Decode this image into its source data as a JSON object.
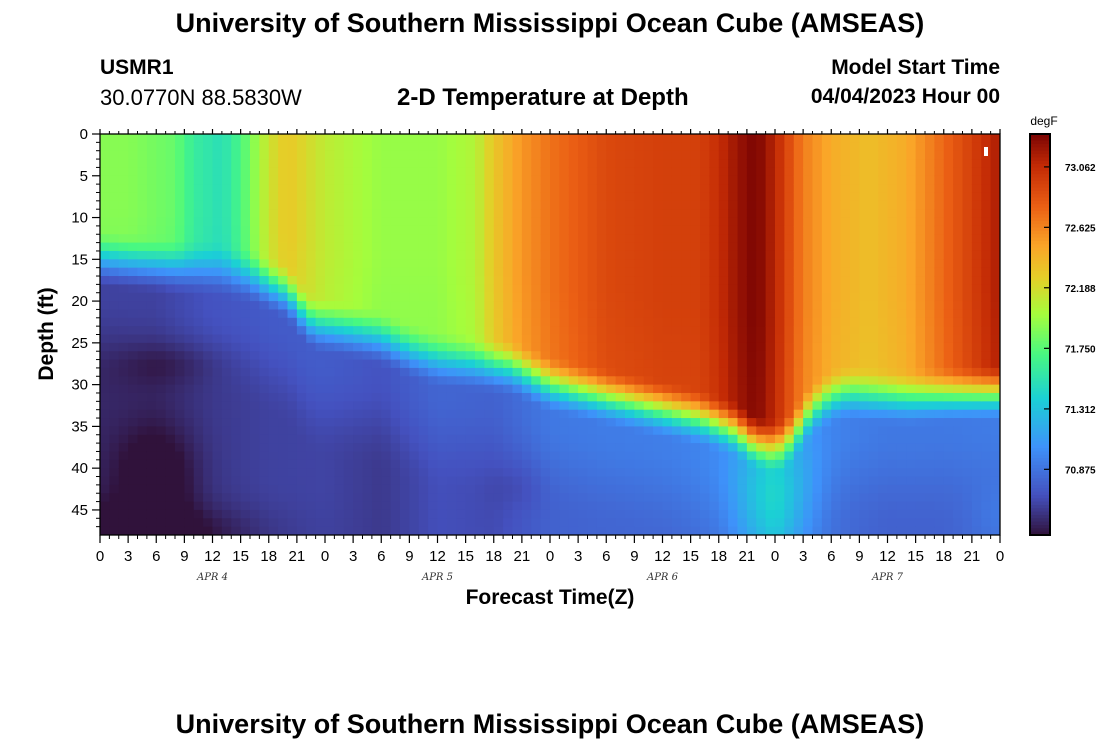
{
  "header": {
    "title": "University of Southern Mississippi Ocean Cube (AMSEAS)",
    "station": "USMR1",
    "coords": "30.0770N  88.5830W",
    "plot_title": "2-D Temperature at Depth",
    "model_start_label": "Model Start Time",
    "model_start_value": "04/04/2023 Hour 00"
  },
  "footer": {
    "title": "University of Southern Mississippi Ocean Cube (AMSEAS)"
  },
  "chart_data": {
    "type": "heatmap",
    "title": "2-D Temperature at Depth",
    "xlabel": "Forecast Time(Z)",
    "ylabel": "Depth (ft)",
    "x_hours_range": [
      0,
      96
    ],
    "x_tick_step_hours": 3,
    "x_tick_labels": [
      "0",
      "3",
      "6",
      "9",
      "12",
      "15",
      "18",
      "21",
      "0",
      "3",
      "6",
      "9",
      "12",
      "15",
      "18",
      "21",
      "0",
      "3",
      "6",
      "9",
      "12",
      "15",
      "18",
      "21",
      "0",
      "3",
      "6",
      "9",
      "12",
      "15",
      "18",
      "21",
      "0"
    ],
    "date_labels": [
      {
        "text": "APR 4",
        "hour": 12
      },
      {
        "text": "APR 5",
        "hour": 36
      },
      {
        "text": "APR 6",
        "hour": 60
      },
      {
        "text": "APR 7",
        "hour": 84
      }
    ],
    "y_range": [
      0,
      48
    ],
    "y_ticks": [
      0,
      5,
      10,
      15,
      20,
      25,
      30,
      35,
      40,
      45
    ],
    "colorbar": {
      "units": "degF",
      "min": 70.4,
      "max": 73.3,
      "tick_values": [
        73.062,
        72.625,
        72.188,
        71.75,
        71.312,
        70.875
      ],
      "tick_labels": [
        "73.062",
        "72.625",
        "72.188",
        "71.750",
        "71.312",
        "70.875"
      ]
    },
    "warm_layer_boundary_depth_ft": {
      "hours": [
        0,
        5,
        9,
        13,
        14,
        16,
        18,
        20,
        21,
        22,
        23,
        26,
        30,
        33,
        36,
        40,
        44,
        48,
        52,
        56,
        60,
        64,
        68,
        69,
        70,
        71,
        72,
        73,
        74,
        75,
        76,
        78,
        80,
        82,
        86,
        90,
        96
      ],
      "depths": [
        15,
        15.6,
        16,
        16.3,
        16.6,
        17,
        18,
        19,
        20.5,
        22,
        22.8,
        23.5,
        24.5,
        26,
        27,
        27.5,
        28,
        30,
        31,
        32,
        33,
        34,
        35.5,
        36.5,
        37,
        37.4,
        37.6,
        37.2,
        36.2,
        34.5,
        33,
        31.5,
        31,
        31.3,
        31.6,
        31.3,
        31
      ]
    },
    "surface_temperature_degF": {
      "hours": [
        0,
        3,
        8,
        10,
        13,
        15,
        18,
        20,
        24,
        30,
        36,
        40,
        42,
        45,
        48,
        54,
        60,
        64,
        66,
        68,
        70,
        72,
        75,
        78,
        82,
        86,
        90,
        93,
        96
      ],
      "values": [
        71.9,
        71.9,
        71.8,
        71.6,
        71.5,
        71.7,
        72.15,
        72.3,
        72.1,
        71.95,
        71.95,
        72.05,
        72.3,
        72.55,
        72.7,
        72.9,
        72.95,
        72.95,
        73.05,
        73.2,
        73.3,
        73.1,
        72.65,
        72.45,
        72.35,
        72.45,
        72.75,
        72.95,
        73.15
      ]
    },
    "bottom_layer_temperature_degF": {
      "hours": [
        0,
        6,
        12,
        18,
        24,
        30,
        36,
        42,
        48,
        54,
        60,
        66,
        70,
        72,
        74,
        78,
        84,
        90,
        96
      ],
      "values": [
        70.62,
        70.62,
        70.7,
        70.74,
        70.75,
        70.7,
        70.8,
        70.78,
        70.9,
        70.92,
        70.93,
        70.97,
        71.1,
        71.17,
        71.05,
        70.95,
        70.9,
        70.9,
        70.92
      ]
    }
  }
}
